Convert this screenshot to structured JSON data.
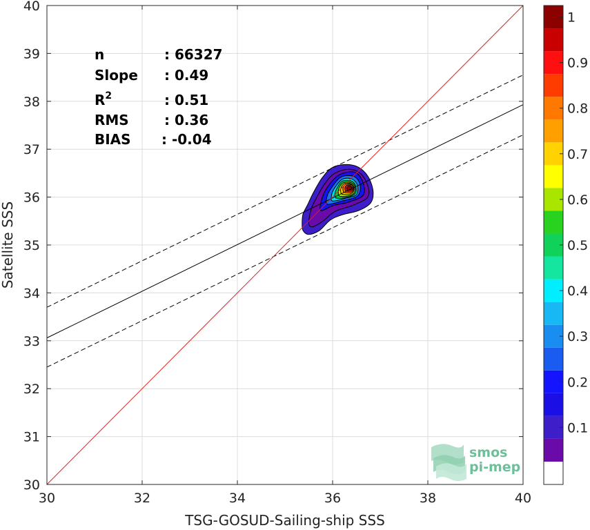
{
  "chart_data": {
    "type": "contour",
    "xlabel": "TSG-GOSUD-Sailing-ship SSS",
    "ylabel": "Satellite SSS",
    "xlim": [
      30,
      40
    ],
    "ylim": [
      30,
      40
    ],
    "xticks": [
      30,
      32,
      34,
      36,
      38,
      40
    ],
    "yticks": [
      30,
      31,
      32,
      33,
      34,
      35,
      36,
      37,
      38,
      39,
      40
    ],
    "grid": true,
    "stats": [
      {
        "label": "n",
        "value": ": 66327"
      },
      {
        "label": "Slope",
        "value": ": 0.49"
      },
      {
        "label": "R",
        "sup": "2",
        "value": ": 0.51"
      },
      {
        "label": "RMS",
        "value": ": 0.36"
      },
      {
        "label": "BIAS",
        "value": ": -0.04"
      }
    ],
    "identity_line": {
      "color": "#e02020",
      "points": [
        [
          30,
          30
        ],
        [
          40,
          40
        ]
      ]
    },
    "fit_line": {
      "color": "#000000",
      "points": [
        [
          30,
          33.06
        ],
        [
          40,
          37.93
        ]
      ]
    },
    "fit_upper": {
      "style": "dashed",
      "points": [
        [
          30,
          33.7
        ],
        [
          40,
          38.55
        ]
      ]
    },
    "fit_lower": {
      "style": "dashed",
      "points": [
        [
          30,
          32.45
        ],
        [
          40,
          37.3
        ]
      ]
    },
    "density_peak": {
      "x": 36.35,
      "y": 36.2
    },
    "contour_levels": [
      {
        "level": 0.05,
        "color": "#3d1ec8",
        "points": [
          [
            35.36,
            35.45
          ],
          [
            35.38,
            35.3
          ],
          [
            35.5,
            35.22
          ],
          [
            35.72,
            35.3
          ],
          [
            35.95,
            35.52
          ],
          [
            36.2,
            35.63
          ],
          [
            36.55,
            35.72
          ],
          [
            36.8,
            35.88
          ],
          [
            36.85,
            36.12
          ],
          [
            36.75,
            36.42
          ],
          [
            36.55,
            36.62
          ],
          [
            36.3,
            36.68
          ],
          [
            36.0,
            36.62
          ],
          [
            35.78,
            36.4
          ],
          [
            35.6,
            36.1
          ],
          [
            35.48,
            35.85
          ],
          [
            35.38,
            35.65
          ]
        ]
      },
      {
        "level": 0.1,
        "color": "#6a0aa8",
        "points": [
          [
            35.5,
            35.45
          ],
          [
            35.58,
            35.38
          ],
          [
            35.8,
            35.5
          ],
          [
            36.05,
            35.7
          ],
          [
            36.4,
            35.82
          ],
          [
            36.72,
            35.98
          ],
          [
            36.75,
            36.2
          ],
          [
            36.6,
            36.48
          ],
          [
            36.35,
            36.58
          ],
          [
            36.05,
            36.5
          ],
          [
            35.85,
            36.3
          ],
          [
            35.68,
            36.02
          ],
          [
            35.55,
            35.75
          ]
        ]
      },
      {
        "level": 0.2,
        "color": "#1414ee",
        "points": [
          [
            35.75,
            35.72
          ],
          [
            36.0,
            35.82
          ],
          [
            36.35,
            35.9
          ],
          [
            36.65,
            36.05
          ],
          [
            36.62,
            36.35
          ],
          [
            36.45,
            36.52
          ],
          [
            36.15,
            36.47
          ],
          [
            35.92,
            36.25
          ],
          [
            35.78,
            35.98
          ]
        ]
      },
      {
        "level": 0.3,
        "color": "#1a70ee",
        "points": [
          [
            35.9,
            35.85
          ],
          [
            36.2,
            35.92
          ],
          [
            36.52,
            36.02
          ],
          [
            36.58,
            36.25
          ],
          [
            36.45,
            36.43
          ],
          [
            36.18,
            36.42
          ],
          [
            35.98,
            36.2
          ],
          [
            35.88,
            36.0
          ]
        ]
      },
      {
        "level": 0.4,
        "color": "#00dcee",
        "points": [
          [
            36.0,
            35.92
          ],
          [
            36.28,
            35.98
          ],
          [
            36.5,
            36.05
          ],
          [
            36.52,
            36.25
          ],
          [
            36.4,
            36.38
          ],
          [
            36.2,
            36.37
          ],
          [
            36.05,
            36.2
          ],
          [
            35.98,
            36.05
          ]
        ]
      },
      {
        "level": 0.5,
        "color": "#00d23c",
        "points": [
          [
            36.08,
            35.98
          ],
          [
            36.32,
            36.0
          ],
          [
            36.48,
            36.08
          ],
          [
            36.48,
            36.25
          ],
          [
            36.38,
            36.34
          ],
          [
            36.2,
            36.33
          ],
          [
            36.1,
            36.2
          ],
          [
            36.05,
            36.08
          ]
        ]
      },
      {
        "level": 0.6,
        "color": "#b4ee00",
        "points": [
          [
            36.15,
            36.02
          ],
          [
            36.35,
            36.03
          ],
          [
            36.46,
            36.1
          ],
          [
            36.46,
            36.24
          ],
          [
            36.36,
            36.31
          ],
          [
            36.22,
            36.3
          ],
          [
            36.14,
            36.2
          ],
          [
            36.12,
            36.1
          ]
        ]
      },
      {
        "level": 0.7,
        "color": "#ffcc00",
        "points": [
          [
            36.2,
            36.06
          ],
          [
            36.36,
            36.06
          ],
          [
            36.44,
            36.12
          ],
          [
            36.44,
            36.23
          ],
          [
            36.35,
            36.29
          ],
          [
            36.24,
            36.28
          ],
          [
            36.18,
            36.2
          ],
          [
            36.17,
            36.12
          ]
        ]
      },
      {
        "level": 0.8,
        "color": "#ff7a00",
        "points": [
          [
            36.24,
            36.1
          ],
          [
            36.37,
            36.09
          ],
          [
            36.43,
            36.14
          ],
          [
            36.43,
            36.23
          ],
          [
            36.35,
            36.27
          ],
          [
            36.26,
            36.26
          ],
          [
            36.22,
            36.2
          ],
          [
            36.22,
            36.14
          ]
        ]
      },
      {
        "level": 0.9,
        "color": "#ee1010",
        "points": [
          [
            36.28,
            36.13
          ],
          [
            36.38,
            36.12
          ],
          [
            36.42,
            36.16
          ],
          [
            36.41,
            36.22
          ],
          [
            36.35,
            36.25
          ],
          [
            36.29,
            36.24
          ],
          [
            36.26,
            36.19
          ]
        ]
      },
      {
        "level": 1.0,
        "color": "#9a0000",
        "points": [
          [
            36.31,
            36.15
          ],
          [
            36.38,
            36.15
          ],
          [
            36.4,
            36.19
          ],
          [
            36.37,
            36.22
          ],
          [
            36.32,
            36.22
          ],
          [
            36.3,
            36.19
          ]
        ]
      }
    ],
    "colorbar": {
      "range": [
        0,
        1
      ],
      "tick_labels": [
        "0.1",
        "0.2",
        "0.3",
        "0.4",
        "0.5",
        "0.6",
        "0.7",
        "0.8",
        "0.9",
        "1"
      ],
      "tick_values": [
        0.1,
        0.2,
        0.3,
        0.4,
        0.5,
        0.6,
        0.7,
        0.8,
        0.9,
        1.0
      ],
      "bands": [
        {
          "from": 0.0,
          "to": 0.05,
          "color": "#ffffff"
        },
        {
          "from": 0.05,
          "to": 0.1,
          "color": "#6a0aa8"
        },
        {
          "from": 0.1,
          "to": 0.15,
          "color": "#3d1ec8"
        },
        {
          "from": 0.15,
          "to": 0.2,
          "color": "#1a10e6"
        },
        {
          "from": 0.2,
          "to": 0.25,
          "color": "#1414ff"
        },
        {
          "from": 0.25,
          "to": 0.3,
          "color": "#1a5cf0"
        },
        {
          "from": 0.3,
          "to": 0.35,
          "color": "#1a8ef0"
        },
        {
          "from": 0.35,
          "to": 0.4,
          "color": "#18b8f4"
        },
        {
          "from": 0.4,
          "to": 0.45,
          "color": "#00eeff"
        },
        {
          "from": 0.45,
          "to": 0.5,
          "color": "#14e6a0"
        },
        {
          "from": 0.5,
          "to": 0.55,
          "color": "#10d25a"
        },
        {
          "from": 0.55,
          "to": 0.6,
          "color": "#28d21e"
        },
        {
          "from": 0.6,
          "to": 0.65,
          "color": "#a8e600"
        },
        {
          "from": 0.65,
          "to": 0.7,
          "color": "#ffff00"
        },
        {
          "from": 0.7,
          "to": 0.75,
          "color": "#ffd200"
        },
        {
          "from": 0.75,
          "to": 0.8,
          "color": "#ffa000"
        },
        {
          "from": 0.8,
          "to": 0.85,
          "color": "#ff7800"
        },
        {
          "from": 0.85,
          "to": 0.9,
          "color": "#ff3c00"
        },
        {
          "from": 0.9,
          "to": 0.95,
          "color": "#ff1010"
        },
        {
          "from": 0.95,
          "to": 1.0,
          "color": "#c80000"
        },
        {
          "from": 1.0,
          "to": 1.05,
          "color": "#8c0000"
        }
      ]
    }
  },
  "logo": {
    "line1": "smos",
    "line2": "pi-mep",
    "color": "#6dbf9a"
  }
}
